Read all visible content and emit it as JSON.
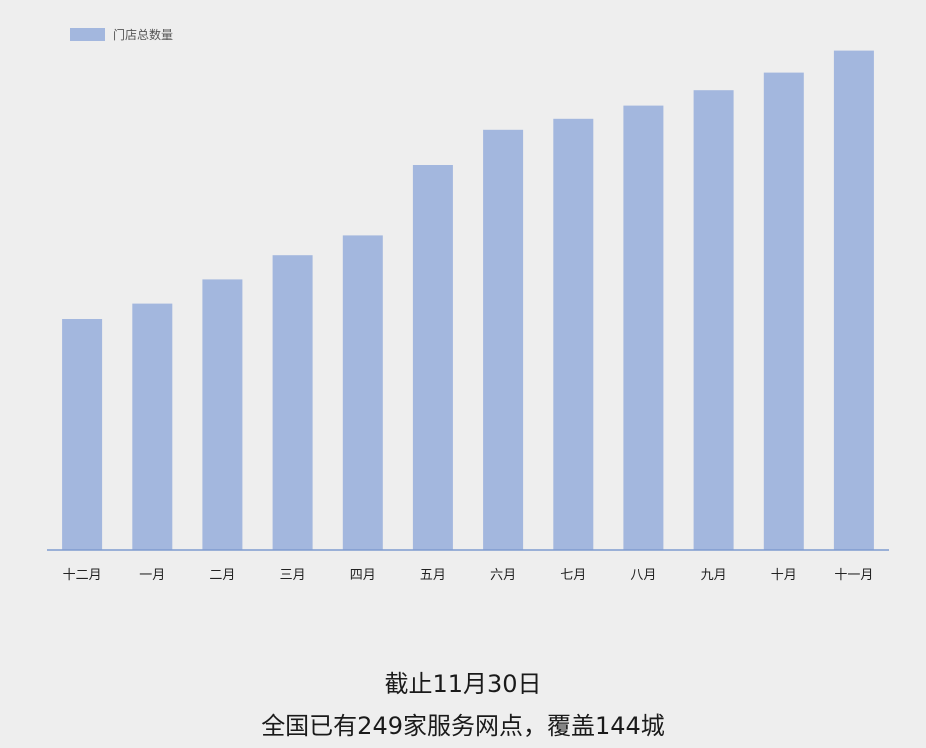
{
  "chart_data": {
    "type": "bar",
    "title": "",
    "xlabel": "",
    "ylabel": "",
    "categories": [
      "十二月",
      "一月",
      "二月",
      "三月",
      "四月",
      "五月",
      "六月",
      "七月",
      "八月",
      "九月",
      "十月",
      "十一月"
    ],
    "series": [
      {
        "name": "门店总数量",
        "values": [
          105,
          112,
          123,
          134,
          143,
          175,
          191,
          196,
          202,
          209,
          217,
          227
        ]
      }
    ],
    "ylim": [
      0,
      250
    ],
    "grid": false,
    "legend_position": "top-left",
    "colors": {
      "bar": "#a3b7de",
      "axis": "#7f9ccf",
      "tick_text": "#222222",
      "legend_text": "#555555"
    }
  },
  "caption": {
    "line1": "截止11月30日",
    "line2": "全国已有249家服务网点，覆盖144城"
  }
}
